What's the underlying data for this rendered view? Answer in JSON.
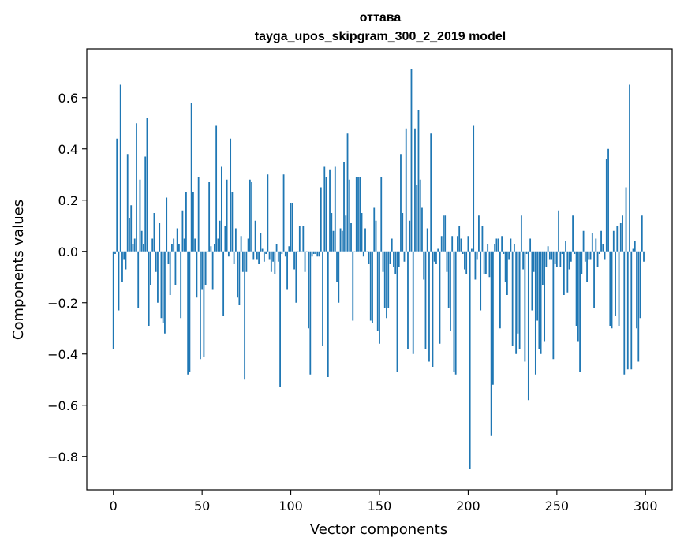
{
  "chart_data": {
    "type": "bar",
    "title": "оттава",
    "subtitle": "tayga_upos_skipgram_300_2_2019 model",
    "xlabel": "Vector components",
    "ylabel": "Components values",
    "xlim": [
      -15,
      315
    ],
    "ylim": [
      -0.93,
      0.79
    ],
    "xticks": [
      0,
      50,
      100,
      150,
      200,
      250,
      300
    ],
    "xtick_labels": [
      "0",
      "50",
      "100",
      "150",
      "200",
      "250",
      "300"
    ],
    "yticks": [
      -0.8,
      -0.6,
      -0.4,
      -0.2,
      0.0,
      0.2,
      0.4,
      0.6
    ],
    "ytick_labels": [
      "−0.8",
      "−0.6",
      "−0.4",
      "−0.2",
      "0.0",
      "0.2",
      "0.4",
      "0.6"
    ],
    "grid": false,
    "bar_color": "#1f77b4",
    "series": [
      {
        "name": "оттава",
        "values": [
          -0.38,
          -0.01,
          0.44,
          -0.23,
          0.65,
          -0.12,
          -0.03,
          -0.07,
          0.38,
          0.13,
          0.18,
          0.03,
          0.05,
          0.5,
          -0.22,
          0.28,
          0.08,
          0.03,
          0.37,
          0.52,
          -0.29,
          -0.13,
          0.05,
          0.15,
          -0.08,
          -0.2,
          0.11,
          -0.26,
          -0.28,
          -0.32,
          0.21,
          -0.05,
          -0.17,
          0.03,
          0.05,
          -0.13,
          0.09,
          0.03,
          -0.26,
          0.16,
          0.05,
          0.23,
          -0.48,
          -0.47,
          0.58,
          0.23,
          0.05,
          -0.18,
          0.29,
          -0.42,
          -0.15,
          -0.41,
          -0.13,
          0.0,
          0.27,
          0.02,
          -0.15,
          0.03,
          0.49,
          0.05,
          0.12,
          0.33,
          -0.25,
          0.1,
          0.28,
          -0.02,
          0.44,
          0.23,
          -0.05,
          0.09,
          -0.18,
          -0.21,
          0.06,
          -0.08,
          -0.5,
          -0.08,
          0.05,
          0.28,
          0.27,
          -0.03,
          0.12,
          -0.03,
          -0.05,
          0.07,
          0.01,
          -0.04,
          -0.01,
          0.3,
          -0.03,
          -0.08,
          -0.04,
          -0.09,
          0.03,
          -0.04,
          -0.53,
          -0.01,
          0.3,
          -0.02,
          -0.15,
          0.02,
          0.19,
          0.19,
          -0.07,
          -0.2,
          0.0,
          0.1,
          0.0,
          0.1,
          -0.08,
          0.0,
          -0.3,
          -0.48,
          -0.02,
          -0.01,
          -0.01,
          -0.02,
          -0.02,
          0.25,
          -0.37,
          0.33,
          0.29,
          -0.49,
          0.32,
          0.15,
          0.08,
          0.33,
          -0.12,
          -0.2,
          0.09,
          0.08,
          0.35,
          0.14,
          0.46,
          0.28,
          0.11,
          -0.27,
          0.0,
          0.29,
          0.29,
          0.29,
          0.15,
          -0.02,
          0.09,
          0.0,
          -0.05,
          -0.27,
          -0.28,
          0.17,
          0.12,
          -0.31,
          -0.36,
          0.29,
          -0.08,
          -0.22,
          -0.26,
          -0.22,
          -0.05,
          0.05,
          -0.06,
          -0.09,
          -0.47,
          -0.06,
          0.38,
          0.15,
          -0.04,
          0.48,
          -0.38,
          0.12,
          0.71,
          -0.4,
          0.48,
          0.26,
          0.55,
          0.28,
          0.17,
          -0.11,
          -0.38,
          0.09,
          -0.43,
          0.46,
          -0.45,
          -0.04,
          -0.05,
          0.01,
          -0.36,
          0.06,
          0.14,
          0.14,
          -0.08,
          -0.22,
          -0.31,
          0.06,
          -0.47,
          -0.48,
          0.06,
          0.1,
          0.05,
          -0.01,
          -0.07,
          -0.09,
          0.06,
          -0.85,
          0.01,
          0.49,
          -0.11,
          -0.03,
          0.14,
          -0.23,
          0.1,
          -0.09,
          -0.09,
          0.03,
          -0.1,
          -0.72,
          -0.52,
          0.03,
          0.05,
          0.05,
          -0.3,
          0.06,
          -0.01,
          -0.12,
          -0.17,
          -0.03,
          0.05,
          -0.37,
          0.03,
          -0.4,
          -0.32,
          -0.38,
          0.14,
          -0.07,
          -0.43,
          -0.01,
          -0.58,
          0.05,
          -0.23,
          -0.08,
          -0.48,
          -0.27,
          -0.38,
          -0.4,
          -0.13,
          -0.35,
          -0.06,
          0.02,
          -0.03,
          -0.03,
          -0.42,
          -0.05,
          -0.06,
          0.16,
          -0.06,
          -0.01,
          -0.17,
          0.04,
          -0.16,
          -0.07,
          -0.04,
          0.14,
          -0.01,
          -0.29,
          -0.35,
          -0.47,
          -0.09,
          0.08,
          -0.04,
          -0.12,
          -0.03,
          -0.03,
          0.07,
          -0.22,
          0.05,
          -0.06,
          -0.01,
          0.08,
          0.03,
          -0.03,
          0.36,
          0.4,
          -0.29,
          -0.3,
          0.08,
          -0.25,
          0.1,
          -0.29,
          0.11,
          0.14,
          -0.48,
          0.25,
          -0.46,
          0.65,
          -0.46,
          0.01,
          0.04,
          -0.3,
          -0.43,
          -0.26,
          0.14,
          -0.04
        ]
      }
    ]
  }
}
